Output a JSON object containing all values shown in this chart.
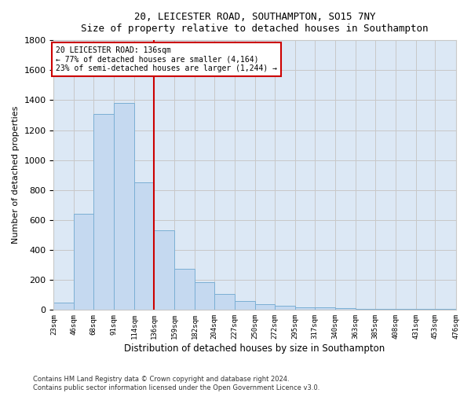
{
  "title_line1": "20, LEICESTER ROAD, SOUTHAMPTON, SO15 7NY",
  "title_line2": "Size of property relative to detached houses in Southampton",
  "xlabel": "Distribution of detached houses by size in Southampton",
  "ylabel": "Number of detached properties",
  "footer_line1": "Contains HM Land Registry data © Crown copyright and database right 2024.",
  "footer_line2": "Contains public sector information licensed under the Open Government Licence v3.0.",
  "annotation_line1": "20 LEICESTER ROAD: 136sqm",
  "annotation_line2": "← 77% of detached houses are smaller (4,164)",
  "annotation_line3": "23% of semi-detached houses are larger (1,244) →",
  "bar_values": [
    50,
    640,
    1310,
    1380,
    850,
    530,
    275,
    185,
    105,
    60,
    40,
    30,
    20,
    15,
    10,
    5,
    5,
    5,
    5,
    5
  ],
  "bin_edges": [
    23,
    46,
    68,
    91,
    114,
    136,
    159,
    182,
    204,
    227,
    250,
    272,
    295,
    317,
    340,
    363,
    385,
    408,
    431,
    453,
    476
  ],
  "tick_labels": [
    "23sqm",
    "46sqm",
    "68sqm",
    "91sqm",
    "114sqm",
    "136sqm",
    "159sqm",
    "182sqm",
    "204sqm",
    "227sqm",
    "250sqm",
    "272sqm",
    "295sqm",
    "317sqm",
    "340sqm",
    "363sqm",
    "385sqm",
    "408sqm",
    "431sqm",
    "453sqm",
    "476sqm"
  ],
  "property_line_x": 136,
  "bar_color": "#c5d9f0",
  "bar_edge_color": "#7bafd4",
  "line_color": "#cc0000",
  "annotation_box_color": "#cc0000",
  "grid_color": "#c8c8c8",
  "plot_bg_color": "#dce8f5",
  "background_color": "#ffffff",
  "ylim": [
    0,
    1800
  ],
  "yticks": [
    0,
    200,
    400,
    600,
    800,
    1000,
    1200,
    1400,
    1600,
    1800
  ]
}
